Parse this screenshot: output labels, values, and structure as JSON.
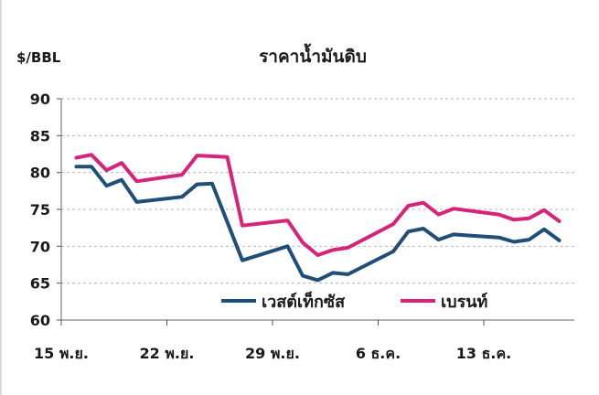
{
  "chart_data": {
    "type": "line",
    "title": "ราคาน้ำมันดิบ",
    "ylabel": "$/BBL",
    "xlabel": "",
    "ylim": [
      60,
      90
    ],
    "yticks": [
      90,
      85,
      80,
      75,
      70,
      65,
      60
    ],
    "xlim": [
      0,
      34
    ],
    "xticks": [
      {
        "x": 0,
        "label": "15 พ.ย."
      },
      {
        "x": 7,
        "label": "22 พ.ย."
      },
      {
        "x": 14,
        "label": "29 พ.ย."
      },
      {
        "x": 21,
        "label": "6 ธ.ค."
      },
      {
        "x": 28,
        "label": "13 ธ.ค."
      }
    ],
    "grid": true,
    "legend_position": "bottom-center",
    "series": [
      {
        "name": "เวสต์เท็กซัส",
        "color": "#1f4e79",
        "points": [
          [
            1,
            80.8
          ],
          [
            2,
            80.8
          ],
          [
            3,
            78.2
          ],
          [
            4,
            79.0
          ],
          [
            5,
            76.0
          ],
          [
            8,
            76.7
          ],
          [
            9,
            78.4
          ],
          [
            10,
            78.5
          ],
          [
            12,
            68.1
          ],
          [
            15,
            70.0
          ],
          [
            16,
            66.0
          ],
          [
            17,
            65.4
          ],
          [
            18,
            66.4
          ],
          [
            19,
            66.2
          ],
          [
            22,
            69.3
          ],
          [
            23,
            72.0
          ],
          [
            24,
            72.4
          ],
          [
            25,
            70.9
          ],
          [
            26,
            71.6
          ],
          [
            29,
            71.2
          ],
          [
            30,
            70.6
          ],
          [
            31,
            70.9
          ],
          [
            32,
            72.3
          ],
          [
            33,
            70.8
          ]
        ]
      },
      {
        "name": "เบรนท์",
        "color": "#d6247a",
        "points": [
          [
            1,
            82.0
          ],
          [
            2,
            82.4
          ],
          [
            3,
            80.3
          ],
          [
            4,
            81.3
          ],
          [
            5,
            78.8
          ],
          [
            8,
            79.7
          ],
          [
            9,
            82.3
          ],
          [
            10,
            82.2
          ],
          [
            11,
            82.1
          ],
          [
            12,
            72.8
          ],
          [
            15,
            73.5
          ],
          [
            16,
            70.5
          ],
          [
            17,
            68.8
          ],
          [
            18,
            69.5
          ],
          [
            19,
            69.8
          ],
          [
            22,
            73.0
          ],
          [
            23,
            75.5
          ],
          [
            24,
            75.9
          ],
          [
            25,
            74.3
          ],
          [
            26,
            75.1
          ],
          [
            29,
            74.3
          ],
          [
            30,
            73.6
          ],
          [
            31,
            73.8
          ],
          [
            32,
            74.9
          ],
          [
            33,
            73.4
          ]
        ]
      }
    ]
  }
}
